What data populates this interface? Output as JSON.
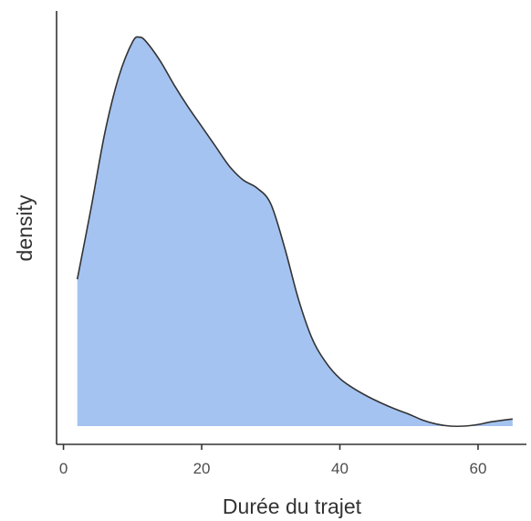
{
  "chart_data": {
    "type": "area",
    "subtype": "density",
    "xlabel": "Durée du trajet",
    "ylabel": "density",
    "xlim": [
      -1,
      67
    ],
    "ylim": [
      0,
      1.0
    ],
    "x_ticks": [
      0,
      20,
      40,
      60
    ],
    "y_ticks": [],
    "grid": false,
    "legend": "none",
    "fill_color": "#a4c3f1",
    "line_color": "#333333",
    "series": [
      {
        "x": [
          2,
          4,
          6,
          8,
          10,
          11,
          12,
          14,
          16,
          18,
          20,
          22,
          24,
          26,
          28,
          30,
          32,
          34,
          36,
          38,
          40,
          42,
          44,
          46,
          48,
          50,
          52,
          54,
          56,
          58,
          60,
          62,
          65
        ],
        "values": [
          0.37,
          0.55,
          0.74,
          0.88,
          0.968,
          0.98,
          0.968,
          0.92,
          0.86,
          0.805,
          0.755,
          0.705,
          0.655,
          0.62,
          0.6,
          0.56,
          0.45,
          0.32,
          0.22,
          0.16,
          0.12,
          0.095,
          0.075,
          0.058,
          0.043,
          0.03,
          0.015,
          0.005,
          0.0,
          0.0,
          0.004,
          0.011,
          0.018
        ]
      }
    ]
  }
}
